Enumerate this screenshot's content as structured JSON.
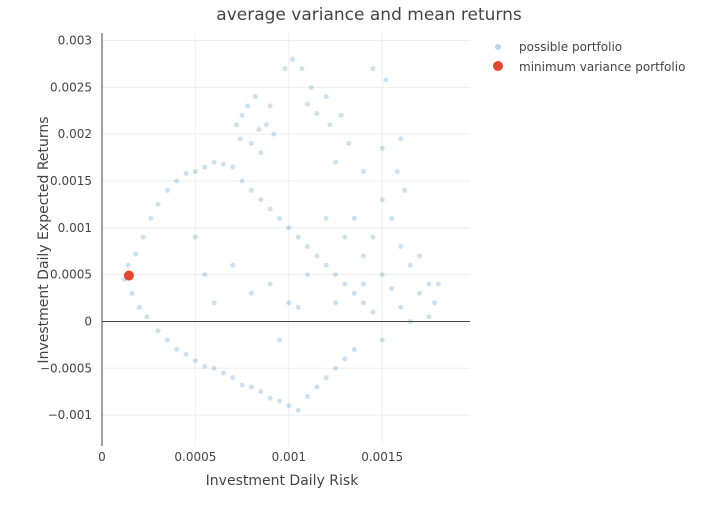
{
  "chart_data": {
    "type": "scatter",
    "title": "average variance and mean returns",
    "xlabel": "Investment Daily Risk",
    "ylabel": "Investment Daily Expected Returns",
    "xlim": [
      0,
      0.00197
    ],
    "ylim": [
      -0.00133,
      0.00308
    ],
    "x_ticks": [
      {
        "value": 0,
        "label": "0"
      },
      {
        "value": 0.0005,
        "label": "0.0005"
      },
      {
        "value": 0.001,
        "label": "0.001"
      },
      {
        "value": 0.0015,
        "label": "0.0015"
      }
    ],
    "y_ticks": [
      {
        "value": -0.001,
        "label": "−0.001"
      },
      {
        "value": -0.0005,
        "label": "−0.0005"
      },
      {
        "value": 0,
        "label": "0"
      },
      {
        "value": 0.0005,
        "label": "0.0005"
      },
      {
        "value": 0.001,
        "label": "0.001"
      },
      {
        "value": 0.0015,
        "label": "0.0015"
      },
      {
        "value": 0.002,
        "label": "0.002"
      },
      {
        "value": 0.0025,
        "label": "0.0025"
      },
      {
        "value": 0.003,
        "label": "0.003"
      }
    ],
    "grid": true,
    "legend_position": "top-right",
    "series": [
      {
        "name": "possible portfolio",
        "color": "#1f77b4",
        "opacity": 0.22,
        "marker_size": 5,
        "points": [
          [
            0.00012,
            0.00045
          ],
          [
            0.00014,
            0.0006
          ],
          [
            0.00016,
            0.0003
          ],
          [
            0.00018,
            0.00072
          ],
          [
            0.0002,
            0.00015
          ],
          [
            0.00022,
            0.0009
          ],
          [
            0.00024,
            5e-05
          ],
          [
            0.00026,
            0.0011
          ],
          [
            0.0003,
            -0.0001
          ],
          [
            0.0003,
            0.00125
          ],
          [
            0.00035,
            0.0014
          ],
          [
            0.00035,
            -0.0002
          ],
          [
            0.0004,
            0.0015
          ],
          [
            0.0004,
            -0.0003
          ],
          [
            0.00045,
            0.00158
          ],
          [
            0.00045,
            -0.00035
          ],
          [
            0.0005,
            0.0016
          ],
          [
            0.0005,
            -0.00042
          ],
          [
            0.00055,
            0.00165
          ],
          [
            0.00055,
            -0.00048
          ],
          [
            0.0006,
            0.0017
          ],
          [
            0.0006,
            -0.0005
          ],
          [
            0.00065,
            0.00168
          ],
          [
            0.00065,
            -0.00055
          ],
          [
            0.0007,
            0.00165
          ],
          [
            0.0007,
            -0.0006
          ],
          [
            0.00075,
            0.0015
          ],
          [
            0.00075,
            -0.00068
          ],
          [
            0.0008,
            0.0014
          ],
          [
            0.0008,
            -0.0007
          ],
          [
            0.00085,
            0.0013
          ],
          [
            0.00085,
            -0.00075
          ],
          [
            0.0009,
            0.0012
          ],
          [
            0.0009,
            -0.00082
          ],
          [
            0.00095,
            0.0011
          ],
          [
            0.00095,
            -0.00085
          ],
          [
            0.001,
            0.001
          ],
          [
            0.001,
            -0.0009
          ],
          [
            0.00105,
            0.0009
          ],
          [
            0.00105,
            -0.00095
          ],
          [
            0.0011,
            0.0008
          ],
          [
            0.0011,
            -0.0008
          ],
          [
            0.00115,
            0.0007
          ],
          [
            0.00115,
            -0.0007
          ],
          [
            0.0012,
            0.0006
          ],
          [
            0.0012,
            -0.0006
          ],
          [
            0.00125,
            0.0005
          ],
          [
            0.00125,
            -0.0005
          ],
          [
            0.0013,
            0.0004
          ],
          [
            0.0013,
            -0.0004
          ],
          [
            0.00135,
            0.0003
          ],
          [
            0.00135,
            -0.0003
          ],
          [
            0.0014,
            0.0002
          ],
          [
            0.0014,
            0.0007
          ],
          [
            0.00145,
            0.0001
          ],
          [
            0.00145,
            0.0009
          ],
          [
            0.0015,
            0.0005
          ],
          [
            0.0015,
            -0.0002
          ],
          [
            0.00155,
            0.0011
          ],
          [
            0.00155,
            0.00035
          ],
          [
            0.0016,
            0.0008
          ],
          [
            0.0016,
            0.00015
          ],
          [
            0.00165,
            0.0006
          ],
          [
            0.00165,
            0.0
          ],
          [
            0.0017,
            0.0007
          ],
          [
            0.0017,
            0.0003
          ],
          [
            0.00175,
            0.0004
          ],
          [
            0.00175,
            5e-05
          ],
          [
            0.0018,
            0.0004
          ],
          [
            0.00178,
            0.0002
          ],
          [
            0.0015,
            0.0013
          ],
          [
            0.0015,
            0.00185
          ],
          [
            0.0014,
            0.0016
          ],
          [
            0.0016,
            0.00195
          ],
          [
            0.00145,
            0.0027
          ],
          [
            0.00152,
            0.00258
          ],
          [
            0.00158,
            0.0016
          ],
          [
            0.00162,
            0.0014
          ],
          [
            0.0012,
            0.0024
          ],
          [
            0.00122,
            0.0021
          ],
          [
            0.0011,
            0.00232
          ],
          [
            0.00115,
            0.00222
          ],
          [
            0.00102,
            0.0028
          ],
          [
            0.00098,
            0.0027
          ],
          [
            0.00085,
            0.0018
          ],
          [
            0.0008,
            0.0019
          ],
          [
            0.00075,
            0.0022
          ],
          [
            0.00078,
            0.0023
          ],
          [
            0.00082,
            0.0024
          ],
          [
            0.00072,
            0.0021
          ],
          [
            0.00088,
            0.0021
          ],
          [
            0.0009,
            0.0023
          ],
          [
            0.00092,
            0.002
          ],
          [
            0.00074,
            0.00195
          ],
          [
            0.00084,
            0.00205
          ],
          [
            0.00107,
            0.0027
          ],
          [
            0.00112,
            0.0025
          ],
          [
            0.00128,
            0.0022
          ],
          [
            0.00132,
            0.0019
          ],
          [
            0.00125,
            0.0017
          ],
          [
            0.0005,
            0.0009
          ],
          [
            0.00055,
            0.0005
          ],
          [
            0.0006,
            0.0002
          ],
          [
            0.0007,
            0.0006
          ],
          [
            0.0008,
            0.0003
          ],
          [
            0.0009,
            0.0004
          ],
          [
            0.001,
            0.0002
          ],
          [
            0.0011,
            0.0005
          ],
          [
            0.00105,
            0.00015
          ],
          [
            0.00095,
            -0.0002
          ],
          [
            0.0013,
            0.0009
          ],
          [
            0.0012,
            0.0011
          ],
          [
            0.00135,
            0.0011
          ],
          [
            0.0014,
            0.0004
          ],
          [
            0.00125,
            0.0002
          ]
        ]
      },
      {
        "name": "minimum variance portfolio",
        "color": "#e4472c",
        "opacity": 1,
        "marker_size": 10,
        "points": [
          [
            0.000144,
            0.00049
          ]
        ]
      }
    ]
  }
}
